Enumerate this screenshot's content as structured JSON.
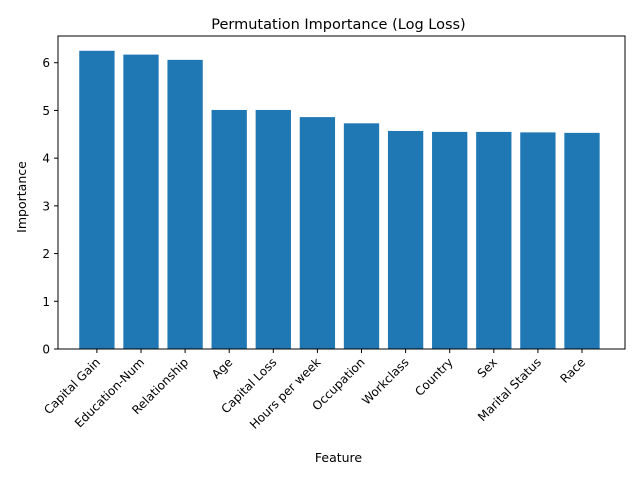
{
  "chart_data": {
    "type": "bar",
    "title": "Permutation Importance (Log Loss)",
    "xlabel": "Feature",
    "ylabel": "Importance",
    "categories": [
      "Capital Gain",
      "Education-Num",
      "Relationship",
      "Age",
      "Capital Loss",
      "Hours per week",
      "Occupation",
      "Workclass",
      "Country",
      "Sex",
      "Marital Status",
      "Race"
    ],
    "values": [
      6.25,
      6.17,
      6.06,
      5.01,
      5.01,
      4.86,
      4.73,
      4.57,
      4.55,
      4.55,
      4.54,
      4.53
    ],
    "yticks": [
      "0",
      "1",
      "2",
      "3",
      "4",
      "5",
      "6"
    ],
    "ylim": [
      0,
      6.56
    ],
    "grid": false,
    "legend": "none",
    "bar_color": "#1f77b4",
    "x_tick_rotation_deg": 45
  }
}
